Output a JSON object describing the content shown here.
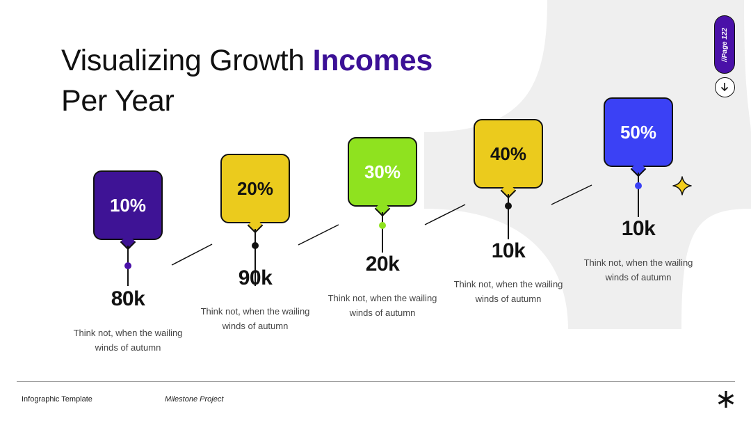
{
  "header": {
    "title_line1": "Visualizing Growth",
    "title_accent": "Incomes",
    "title_line2": "Per Year"
  },
  "page_indicator": {
    "label": "//Page 122"
  },
  "colors": {
    "accent_purple": "#3b1096",
    "step1": "#3e1395",
    "step2": "#ebcb1d",
    "step3": "#8fe21f",
    "step4": "#ebcb1d",
    "step5": "#3b41f5",
    "sparkle": "#f2cd1b"
  },
  "steps": [
    {
      "percent": "10%",
      "value": "80k",
      "desc_line1": "Think not, when the wailing",
      "desc_line2": "winds of autumn"
    },
    {
      "percent": "20%",
      "value": "90k",
      "desc_line1": "Think not, when the wailing",
      "desc_line2": "winds of autumn"
    },
    {
      "percent": "30%",
      "value": "20k",
      "desc_line1": "Think not, when the wailing",
      "desc_line2": "winds of autumn"
    },
    {
      "percent": "40%",
      "value": "10k",
      "desc_line1": "Think not, when the wailing",
      "desc_line2": "winds of autumn"
    },
    {
      "percent": "50%",
      "value": "10k",
      "desc_line1": "Think not, when the wailing",
      "desc_line2": "winds of autumn"
    }
  ],
  "footer": {
    "left_label": "Infographic Template",
    "project_label": "Milestone Project"
  },
  "icons": {
    "down": "arrow-down-circle-icon",
    "sparkle": "sparkle-star-icon",
    "logo": "asterisk-logo-icon"
  }
}
